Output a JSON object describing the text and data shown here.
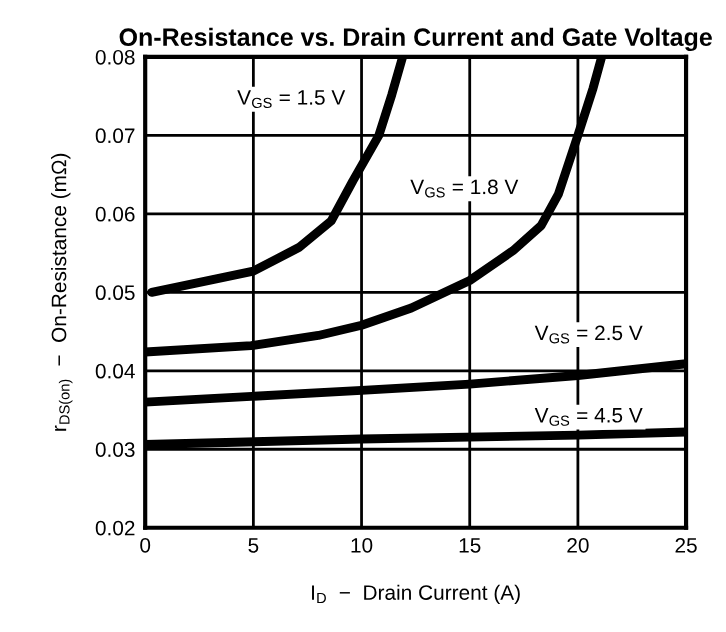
{
  "chart_data": {
    "type": "line",
    "title": "On-Resistance vs. Drain Current and Gate Voltage",
    "xlabel": "I$_{D}$  −  Drain Current (A)",
    "ylabel": "r$_{DS(on)}$  −  On-Resistance (mΩ)",
    "series": [
      {
        "name": "V$_{GS}$ = 1.5 V",
        "color": "#000000",
        "x": [
          0.3,
          5,
          7.1,
          8.6,
          9.6,
          10.8,
          11.4,
          11.9
        ],
        "values": [
          0.05,
          0.0527,
          0.0557,
          0.0591,
          0.0642,
          0.07,
          0.0752,
          0.08
        ]
      },
      {
        "name": "V$_{GS}$ = 1.8 V",
        "color": "#000000",
        "x": [
          0,
          4.9,
          8,
          10,
          12.3,
          15,
          17,
          18.3,
          19.1,
          20,
          20.7,
          21.1
        ],
        "values": [
          0.0424,
          0.0432,
          0.0445,
          0.0458,
          0.048,
          0.0515,
          0.0553,
          0.0585,
          0.0625,
          0.07,
          0.076,
          0.08
        ]
      },
      {
        "name": "V$_{GS}$ = 2.5 V",
        "color": "#000000",
        "x": [
          0,
          10,
          15,
          20,
          25
        ],
        "values": [
          0.036,
          0.0375,
          0.0383,
          0.0394,
          0.0409
        ]
      },
      {
        "name": "V$_{GS}$ = 4.5 V",
        "color": "#000000",
        "x": [
          0,
          10,
          20,
          25
        ],
        "values": [
          0.0306,
          0.0313,
          0.0318,
          0.0322
        ]
      }
    ],
    "xlim": [
      0,
      25
    ],
    "xticks": [
      0,
      5,
      10,
      15,
      20,
      25
    ],
    "ylim": [
      0.02,
      0.08
    ],
    "yticks": [
      0.02,
      0.03,
      0.04,
      0.05,
      0.06,
      0.07,
      0.08
    ],
    "grid": true,
    "marker": "none",
    "line_style": "solid",
    "legend": false
  }
}
